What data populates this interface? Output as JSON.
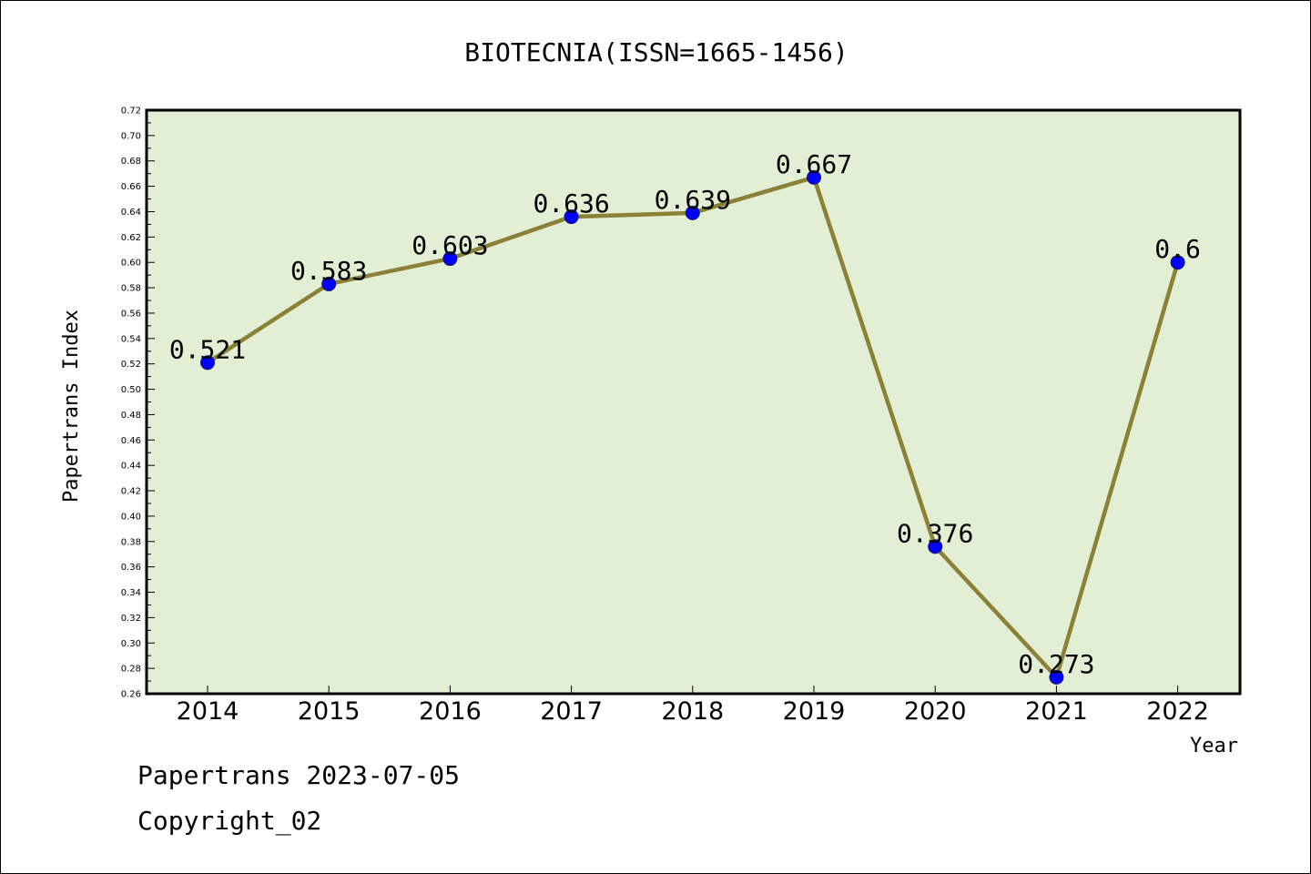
{
  "chart_data": {
    "type": "line",
    "title": "BIOTECNIA(ISSN=1665-1456)",
    "xlabel": "Year",
    "ylabel": "Papertrans Index",
    "categories": [
      "2014",
      "2015",
      "2016",
      "2017",
      "2018",
      "2019",
      "2020",
      "2021",
      "2022"
    ],
    "series": [
      {
        "values": [
          0.521,
          0.583,
          0.603,
          0.636,
          0.639,
          0.667,
          0.376,
          0.273,
          0.6
        ]
      }
    ],
    "data_labels": [
      "0.521",
      "0.583",
      "0.603",
      "0.636",
      "0.639",
      "0.667",
      "0.376",
      "0.273",
      "0.6"
    ],
    "ylim": [
      0.26,
      0.72
    ],
    "yticks": [
      "0.26",
      "0.28",
      "0.30",
      "0.32",
      "0.34",
      "0.36",
      "0.38",
      "0.40",
      "0.42",
      "0.44",
      "0.46",
      "0.48",
      "0.50",
      "0.52",
      "0.54",
      "0.56",
      "0.58",
      "0.60",
      "0.62",
      "0.64",
      "0.66",
      "0.68",
      "0.70",
      "0.72"
    ],
    "grid": false,
    "legend": "none",
    "colors": {
      "plot_background": "#e2efd5",
      "line": "#8b8036",
      "marker": "#0000ff",
      "axis": "#000000"
    }
  },
  "footer": {
    "line1": "Papertrans 2023-07-05",
    "line2": "Copyright_02"
  }
}
